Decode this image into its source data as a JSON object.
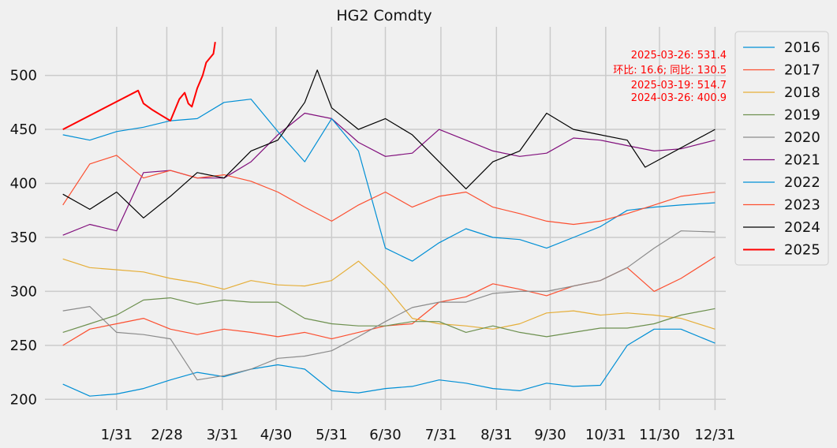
{
  "chart_data": {
    "type": "line",
    "title": "HG2 Comdty",
    "xlabel": "",
    "ylabel": "",
    "ylim": [
      190,
      545
    ],
    "xlim": [
      -10,
      370
    ],
    "grid": true,
    "legend": "outside right, top",
    "x_unit": "day of year",
    "x_ticks": [
      {
        "x": 30,
        "label": "1/31"
      },
      {
        "x": 58,
        "label": "2/28"
      },
      {
        "x": 89,
        "label": "3/31"
      },
      {
        "x": 119,
        "label": "4/30"
      },
      {
        "x": 150,
        "label": "5/31"
      },
      {
        "x": 180,
        "label": "6/30"
      },
      {
        "x": 211,
        "label": "7/31"
      },
      {
        "x": 242,
        "label": "8/31"
      },
      {
        "x": 272,
        "label": "9/30"
      },
      {
        "x": 303,
        "label": "10/31"
      },
      {
        "x": 333,
        "label": "11/30"
      },
      {
        "x": 364,
        "label": "12/31"
      }
    ],
    "y_ticks": [
      200,
      250,
      300,
      350,
      400,
      450,
      500
    ],
    "annotations": [
      "2025-03-26: 531.4",
      "环比: 16.6; 同比: 130.5",
      "2025-03-19: 514.7",
      "2024-03-26: 400.9"
    ],
    "series": [
      {
        "name": "2016",
        "color": "#008fd5",
        "width": 1.2,
        "x": [
          0,
          15,
          30,
          45,
          60,
          75,
          90,
          105,
          120,
          135,
          150,
          165,
          180,
          195,
          210,
          225,
          240,
          255,
          270,
          285,
          300,
          315,
          330,
          345,
          364
        ],
        "y": [
          214,
          203,
          205,
          210,
          218,
          225,
          221,
          228,
          232,
          228,
          208,
          206,
          210,
          212,
          218,
          215,
          210,
          208,
          215,
          212,
          213,
          250,
          265,
          265,
          252
        ]
      },
      {
        "name": "2017",
        "color": "#fc4f30",
        "width": 1.2,
        "x": [
          0,
          15,
          30,
          45,
          60,
          75,
          90,
          105,
          120,
          135,
          150,
          165,
          180,
          195,
          210,
          225,
          240,
          255,
          270,
          285,
          300,
          315,
          330,
          345,
          364
        ],
        "y": [
          250,
          265,
          270,
          275,
          265,
          260,
          265,
          262,
          258,
          262,
          256,
          262,
          268,
          270,
          290,
          295,
          307,
          302,
          296,
          305,
          310,
          322,
          300,
          312,
          332
        ]
      },
      {
        "name": "2018",
        "color": "#e5ae38",
        "width": 1.2,
        "x": [
          0,
          15,
          30,
          45,
          60,
          75,
          90,
          105,
          120,
          135,
          150,
          165,
          180,
          195,
          210,
          225,
          240,
          255,
          270,
          285,
          300,
          315,
          330,
          345,
          364
        ],
        "y": [
          330,
          322,
          320,
          318,
          312,
          308,
          302,
          310,
          306,
          305,
          310,
          328,
          305,
          275,
          270,
          268,
          265,
          270,
          280,
          282,
          278,
          280,
          278,
          275,
          265
        ]
      },
      {
        "name": "2019",
        "color": "#6d904f",
        "width": 1.2,
        "x": [
          0,
          15,
          30,
          45,
          60,
          75,
          90,
          105,
          120,
          135,
          150,
          165,
          180,
          195,
          210,
          225,
          240,
          255,
          270,
          285,
          300,
          315,
          330,
          345,
          364
        ],
        "y": [
          262,
          270,
          278,
          292,
          294,
          288,
          292,
          290,
          290,
          275,
          270,
          268,
          268,
          272,
          272,
          262,
          268,
          262,
          258,
          262,
          266,
          266,
          270,
          278,
          284
        ]
      },
      {
        "name": "2020",
        "color": "#8b8b8b",
        "width": 1.2,
        "x": [
          0,
          15,
          30,
          45,
          60,
          75,
          90,
          105,
          120,
          135,
          150,
          165,
          180,
          195,
          210,
          225,
          240,
          255,
          270,
          285,
          300,
          315,
          330,
          345,
          364
        ],
        "y": [
          282,
          286,
          262,
          260,
          256,
          218,
          222,
          228,
          238,
          240,
          245,
          258,
          272,
          285,
          290,
          290,
          298,
          300,
          300,
          305,
          310,
          322,
          340,
          356,
          355
        ]
      },
      {
        "name": "2021",
        "color": "#810f7c",
        "width": 1.2,
        "x": [
          0,
          15,
          30,
          45,
          60,
          75,
          90,
          105,
          120,
          135,
          150,
          165,
          180,
          195,
          210,
          225,
          240,
          255,
          270,
          285,
          300,
          315,
          330,
          345,
          364
        ],
        "y": [
          352,
          362,
          356,
          410,
          412,
          405,
          405,
          420,
          445,
          465,
          460,
          438,
          425,
          428,
          450,
          440,
          430,
          425,
          428,
          442,
          440,
          435,
          430,
          432,
          440
        ]
      },
      {
        "name": "2022",
        "color": "#008fd5",
        "width": 1.2,
        "x": [
          0,
          15,
          30,
          45,
          60,
          75,
          90,
          105,
          120,
          135,
          150,
          165,
          180,
          195,
          210,
          225,
          240,
          255,
          270,
          285,
          300,
          315,
          330,
          345,
          364
        ],
        "y": [
          445,
          440,
          448,
          452,
          458,
          460,
          475,
          478,
          448,
          420,
          460,
          430,
          340,
          328,
          345,
          358,
          350,
          348,
          340,
          350,
          360,
          375,
          378,
          380,
          382
        ]
      },
      {
        "name": "2023",
        "color": "#fc4f30",
        "width": 1.2,
        "x": [
          0,
          15,
          30,
          45,
          60,
          75,
          90,
          105,
          120,
          135,
          150,
          165,
          180,
          195,
          210,
          225,
          240,
          255,
          270,
          285,
          300,
          315,
          330,
          345,
          364
        ],
        "y": [
          380,
          418,
          426,
          405,
          412,
          405,
          408,
          402,
          392,
          378,
          365,
          380,
          392,
          378,
          388,
          392,
          378,
          372,
          365,
          362,
          365,
          372,
          380,
          388,
          392
        ]
      },
      {
        "name": "2024",
        "color": "#000000",
        "width": 1.2,
        "x": [
          0,
          15,
          30,
          45,
          60,
          75,
          90,
          105,
          120,
          135,
          142,
          150,
          165,
          180,
          195,
          210,
          225,
          240,
          255,
          270,
          285,
          300,
          315,
          325,
          364
        ],
        "y": [
          390,
          376,
          392,
          368,
          388,
          410,
          405,
          430,
          440,
          475,
          505,
          470,
          450,
          460,
          445,
          420,
          395,
          420,
          430,
          465,
          450,
          445,
          440,
          415,
          450
        ]
      },
      {
        "name": "2025",
        "color": "#ff0000",
        "width": 2,
        "x": [
          0,
          42,
          45,
          50,
          55,
          60,
          62,
          65,
          68,
          70,
          72,
          75,
          78,
          80,
          82,
          84,
          85
        ],
        "y": [
          450,
          486,
          474,
          468,
          463,
          458,
          466,
          478,
          484,
          474,
          471,
          488,
          500,
          512,
          516,
          520,
          531
        ]
      }
    ]
  }
}
